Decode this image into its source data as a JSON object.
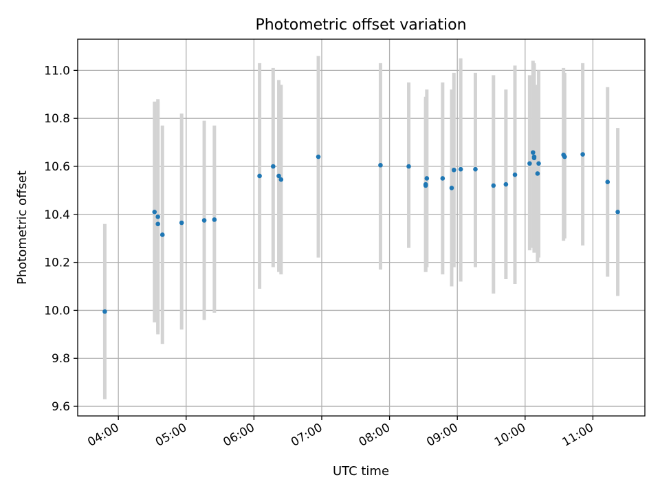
{
  "chart_data": {
    "type": "scatter",
    "title": "Photometric offset variation",
    "xlabel": "UTC time",
    "ylabel": "Photometric offset",
    "xlim": [
      "03:24",
      "11:46"
    ],
    "ylim": [
      9.56,
      11.13
    ],
    "xticks": [
      "04:00",
      "05:00",
      "06:00",
      "07:00",
      "08:00",
      "09:00",
      "10:00",
      "11:00"
    ],
    "yticks": [
      "9.6",
      "9.8",
      "10.0",
      "10.2",
      "10.4",
      "10.6",
      "10.8",
      "11.0"
    ],
    "grid": true,
    "colors": {
      "points": "#1f77b4",
      "errorbars": "#d3d3d3",
      "grid": "#b0b0b0"
    },
    "points": [
      {
        "x": "03:48",
        "y": 9.995,
        "lo": 9.63,
        "hi": 10.36
      },
      {
        "x": "04:32",
        "y": 10.41,
        "lo": 9.95,
        "hi": 10.87
      },
      {
        "x": "04:35",
        "y": 10.36,
        "lo": 9.91,
        "hi": 10.87
      },
      {
        "x": "04:35",
        "y": 10.39,
        "lo": 9.9,
        "hi": 10.88
      },
      {
        "x": "04:39",
        "y": 10.315,
        "lo": 9.86,
        "hi": 10.77
      },
      {
        "x": "04:56",
        "y": 10.365,
        "lo": 9.92,
        "hi": 10.82
      },
      {
        "x": "05:16",
        "y": 10.375,
        "lo": 9.96,
        "hi": 10.79
      },
      {
        "x": "05:25",
        "y": 10.378,
        "lo": 9.99,
        "hi": 10.77
      },
      {
        "x": "06:05",
        "y": 10.56,
        "lo": 10.09,
        "hi": 11.03
      },
      {
        "x": "06:17",
        "y": 10.6,
        "lo": 10.18,
        "hi": 11.01
      },
      {
        "x": "06:22",
        "y": 10.56,
        "lo": 10.16,
        "hi": 10.96
      },
      {
        "x": "06:24",
        "y": 10.545,
        "lo": 10.15,
        "hi": 10.94
      },
      {
        "x": "06:57",
        "y": 10.64,
        "lo": 10.22,
        "hi": 11.06
      },
      {
        "x": "07:52",
        "y": 10.605,
        "lo": 10.17,
        "hi": 11.03
      },
      {
        "x": "08:17",
        "y": 10.6,
        "lo": 10.26,
        "hi": 10.95
      },
      {
        "x": "08:32",
        "y": 10.525,
        "lo": 10.16,
        "hi": 10.88
      },
      {
        "x": "08:32",
        "y": 10.52,
        "lo": 10.16,
        "hi": 10.89
      },
      {
        "x": "08:33",
        "y": 10.55,
        "lo": 10.18,
        "hi": 10.92
      },
      {
        "x": "08:47",
        "y": 10.55,
        "lo": 10.15,
        "hi": 10.95
      },
      {
        "x": "08:55",
        "y": 10.51,
        "lo": 10.1,
        "hi": 10.92
      },
      {
        "x": "08:57",
        "y": 10.585,
        "lo": 10.18,
        "hi": 10.99
      },
      {
        "x": "09:03",
        "y": 10.588,
        "lo": 10.12,
        "hi": 11.05
      },
      {
        "x": "09:16",
        "y": 10.588,
        "lo": 10.18,
        "hi": 10.99
      },
      {
        "x": "09:32",
        "y": 10.52,
        "lo": 10.07,
        "hi": 10.98
      },
      {
        "x": "09:43",
        "y": 10.525,
        "lo": 10.13,
        "hi": 10.92
      },
      {
        "x": "09:51",
        "y": 10.565,
        "lo": 10.11,
        "hi": 11.02
      },
      {
        "x": "10:04",
        "y": 10.612,
        "lo": 10.25,
        "hi": 10.98
      },
      {
        "x": "10:07",
        "y": 10.658,
        "lo": 10.26,
        "hi": 11.04
      },
      {
        "x": "10:08",
        "y": 10.64,
        "lo": 10.25,
        "hi": 11.03
      },
      {
        "x": "10:08",
        "y": 10.635,
        "lo": 10.24,
        "hi": 11.02
      },
      {
        "x": "10:11",
        "y": 10.57,
        "lo": 10.2,
        "hi": 10.94
      },
      {
        "x": "10:12",
        "y": 10.612,
        "lo": 10.22,
        "hi": 11.0
      },
      {
        "x": "10:34",
        "y": 10.648,
        "lo": 10.29,
        "hi": 11.01
      },
      {
        "x": "10:35",
        "y": 10.64,
        "lo": 10.3,
        "hi": 10.99
      },
      {
        "x": "10:51",
        "y": 10.65,
        "lo": 10.27,
        "hi": 11.03
      },
      {
        "x": "11:13",
        "y": 10.535,
        "lo": 10.14,
        "hi": 10.93
      },
      {
        "x": "11:22",
        "y": 10.41,
        "lo": 10.06,
        "hi": 10.76
      }
    ]
  }
}
